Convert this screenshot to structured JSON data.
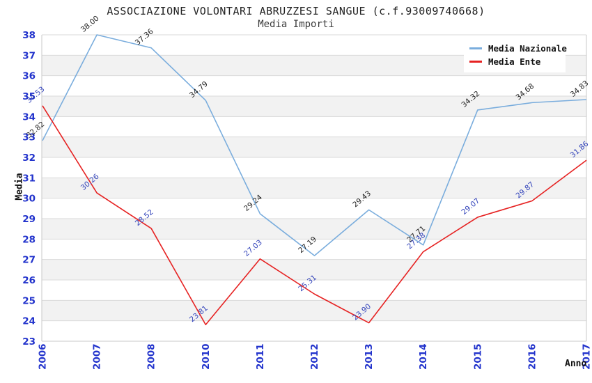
{
  "chart_data": {
    "type": "line",
    "title": "ASSOCIAZIONE VOLONTARI ABRUZZESI SANGUE (c.f.93009740668)",
    "subtitle": "Media Importi",
    "xlabel": "Anno",
    "ylabel": "Media",
    "categories": [
      "2006",
      "2007",
      "2008",
      "2010",
      "2011",
      "2012",
      "2013",
      "2014",
      "2015",
      "2016",
      "2017"
    ],
    "series": [
      {
        "name": "Media Nazionale",
        "color": "#7aaddd",
        "label_color": "#222222",
        "values": [
          32.82,
          38.0,
          37.36,
          34.79,
          29.24,
          27.19,
          29.43,
          27.71,
          34.32,
          34.68,
          34.83
        ]
      },
      {
        "name": "Media Ente",
        "color": "#e62222",
        "label_color": "#3344bb",
        "values": [
          34.53,
          30.26,
          28.52,
          23.81,
          27.03,
          25.31,
          23.9,
          27.38,
          29.07,
          29.87,
          31.86
        ]
      }
    ],
    "ylim": [
      23,
      38
    ],
    "y_tick_step": 1,
    "value_label_decimals": 2,
    "grid": {
      "band_fill": "#f2f2f2",
      "line_color": "#dadada",
      "border_color": "#c9c9c9"
    },
    "tick_label_color": "#2233cc",
    "legend_position": "top-right",
    "legend_background": "#ffffff"
  }
}
